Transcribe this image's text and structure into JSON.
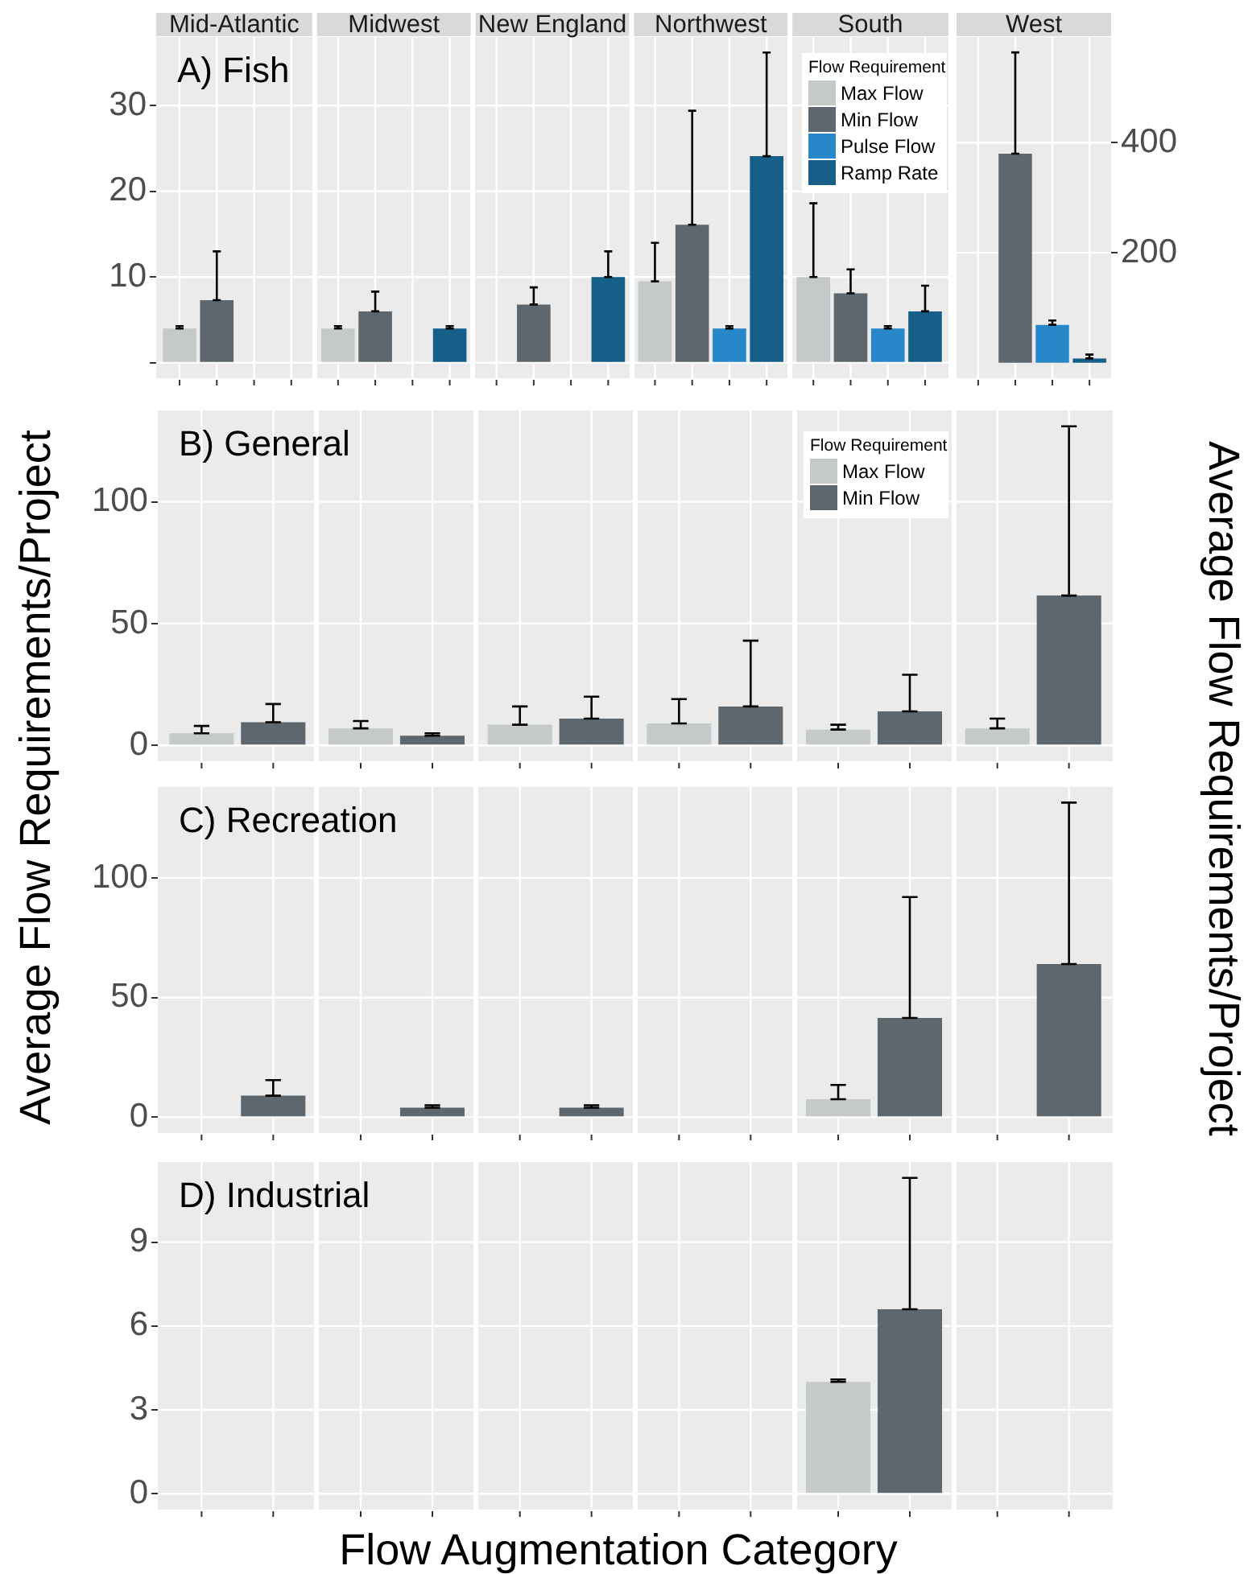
{
  "chart_data": [
    {
      "type": "bar",
      "title": "A) Fish",
      "categories": [
        "Mid-Atlantic",
        "Midwest",
        "New England",
        "Northwest",
        "South"
      ],
      "series": [
        {
          "name": "Max Flow",
          "color": "#c4c9c9",
          "values": [
            4,
            4,
            null,
            9.5,
            10
          ],
          "errors": [
            [
              4,
              4
            ],
            [
              4,
              4
            ],
            null,
            [
              9.5,
              14
            ],
            [
              10,
              18.6
            ]
          ]
        },
        {
          "name": "Min Flow",
          "color": "#5e676d",
          "values": [
            7.3,
            6,
            6.8,
            16.1,
            8.1
          ],
          "errors": [
            [
              7.3,
              13
            ],
            [
              6,
              8.3
            ],
            [
              6.8,
              8.8
            ],
            [
              16.1,
              29.4
            ],
            [
              8.1,
              10.9
            ]
          ]
        },
        {
          "name": "Pulse Flow",
          "color": "#2787c8",
          "values": [
            null,
            null,
            null,
            4,
            4
          ],
          "errors": [
            null,
            null,
            null,
            [
              4,
              4
            ],
            [
              4,
              4
            ]
          ]
        },
        {
          "name": "Ramp Rate",
          "color": "#165f88",
          "values": [
            null,
            4,
            10,
            24.1,
            6
          ],
          "errors": [
            null,
            [
              4,
              4
            ],
            [
              10,
              13
            ],
            [
              24.1,
              36.2
            ],
            [
              6,
              9
            ]
          ]
        }
      ],
      "ylim": [
        -1.8,
        38
      ],
      "yticks": [
        {
          "value": 0,
          "label": null
        },
        10,
        20,
        30
      ],
      "grid": true,
      "legend": "top right",
      "legend_title": "Flow Requirement"
    },
    {
      "type": "bar",
      "categories": [
        "West"
      ],
      "series": [
        {
          "color": "#c4c9c9",
          "values": [
            null
          ],
          "axis": "y2"
        },
        {
          "color": "#5e676d",
          "values": [
            380
          ],
          "errors": [
            [
              380,
              564
            ]
          ],
          "axis": "y2"
        },
        {
          "color": "#2787c8",
          "values": [
            69
          ],
          "errors": [
            [
              69,
              77
            ]
          ],
          "axis": "y2"
        },
        {
          "color": "#165f88",
          "values": [
            8
          ],
          "errors": [
            [
              8,
              15
            ]
          ],
          "axis": "y2"
        }
      ],
      "y2lim": [
        -28,
        592
      ],
      "y2ticks": [
        200,
        400
      ],
      "y2label": "Average Flow Requirements/Project",
      "grid": true
    },
    {
      "type": "bar",
      "title": "B) General",
      "categories": [
        null,
        null,
        null,
        null,
        null,
        null
      ],
      "series": [
        {
          "name": "Max Flow",
          "color": "#c4c9c9",
          "values": [
            5,
            7,
            8.5,
            9,
            6.5,
            7
          ],
          "errors": [
            [
              5,
              8
            ],
            [
              7,
              10
            ],
            [
              8.5,
              16
            ],
            [
              9,
              19
            ],
            [
              6.5,
              8.5
            ],
            [
              7,
              11
            ]
          ]
        },
        {
          "name": "Min Flow",
          "color": "#5e676d",
          "values": [
            9.5,
            4,
            11,
            16,
            14,
            61.5
          ],
          "errors": [
            [
              9.5,
              17
            ],
            [
              4,
              4.5
            ],
            [
              11,
              20
            ],
            [
              16,
              43
            ],
            [
              14,
              29
            ],
            [
              61.5,
              131
            ]
          ]
        }
      ],
      "ylim": [
        -6.5,
        137.5
      ],
      "yticks": [
        0,
        50,
        100
      ],
      "ylabel": "Average Flow Requirements/Project",
      "grid": true,
      "legend": "top right",
      "legend_title": "Flow Requirement",
      "tick_labels": "y"
    },
    {
      "type": "bar",
      "title": "C) Recreation",
      "categories": [
        null,
        null,
        null,
        null,
        null,
        null
      ],
      "series": [
        {
          "color": "#c4c9c9",
          "values": [
            null,
            null,
            null,
            null,
            7.5,
            null
          ],
          "errors": [
            null,
            null,
            null,
            null,
            [
              7.5,
              13.5
            ],
            null
          ]
        },
        {
          "color": "#5e676d",
          "values": [
            9,
            4,
            4,
            null,
            41.5,
            64
          ],
          "errors": [
            [
              9,
              15.5
            ],
            [
              4,
              4
            ],
            [
              4,
              4
            ],
            null,
            [
              41.5,
              92
            ],
            [
              64,
              131.5
            ]
          ]
        }
      ],
      "ylim": [
        -6.6,
        138
      ],
      "yticks": [
        0,
        50,
        100
      ],
      "grid": true,
      "tick_labels": "y"
    },
    {
      "type": "bar",
      "title": "D) Industrial",
      "categories": [
        null,
        null,
        null,
        null,
        null,
        null
      ],
      "series": [
        {
          "color": "#c4c9c9",
          "values": [
            null,
            null,
            null,
            null,
            4,
            null
          ],
          "errors": [
            null,
            null,
            null,
            null,
            [
              4,
              4
            ],
            null
          ]
        },
        {
          "color": "#5e676d",
          "values": [
            null,
            null,
            null,
            null,
            6.6,
            null
          ],
          "errors": [
            null,
            null,
            null,
            null,
            [
              6.6,
              11.3
            ],
            null
          ]
        }
      ],
      "ylim": [
        -0.57,
        11.87
      ],
      "yticks": [
        0,
        3,
        6,
        9
      ],
      "xlabel": "Flow Augmentation Category",
      "grid": true,
      "tick_labels": "y"
    }
  ]
}
